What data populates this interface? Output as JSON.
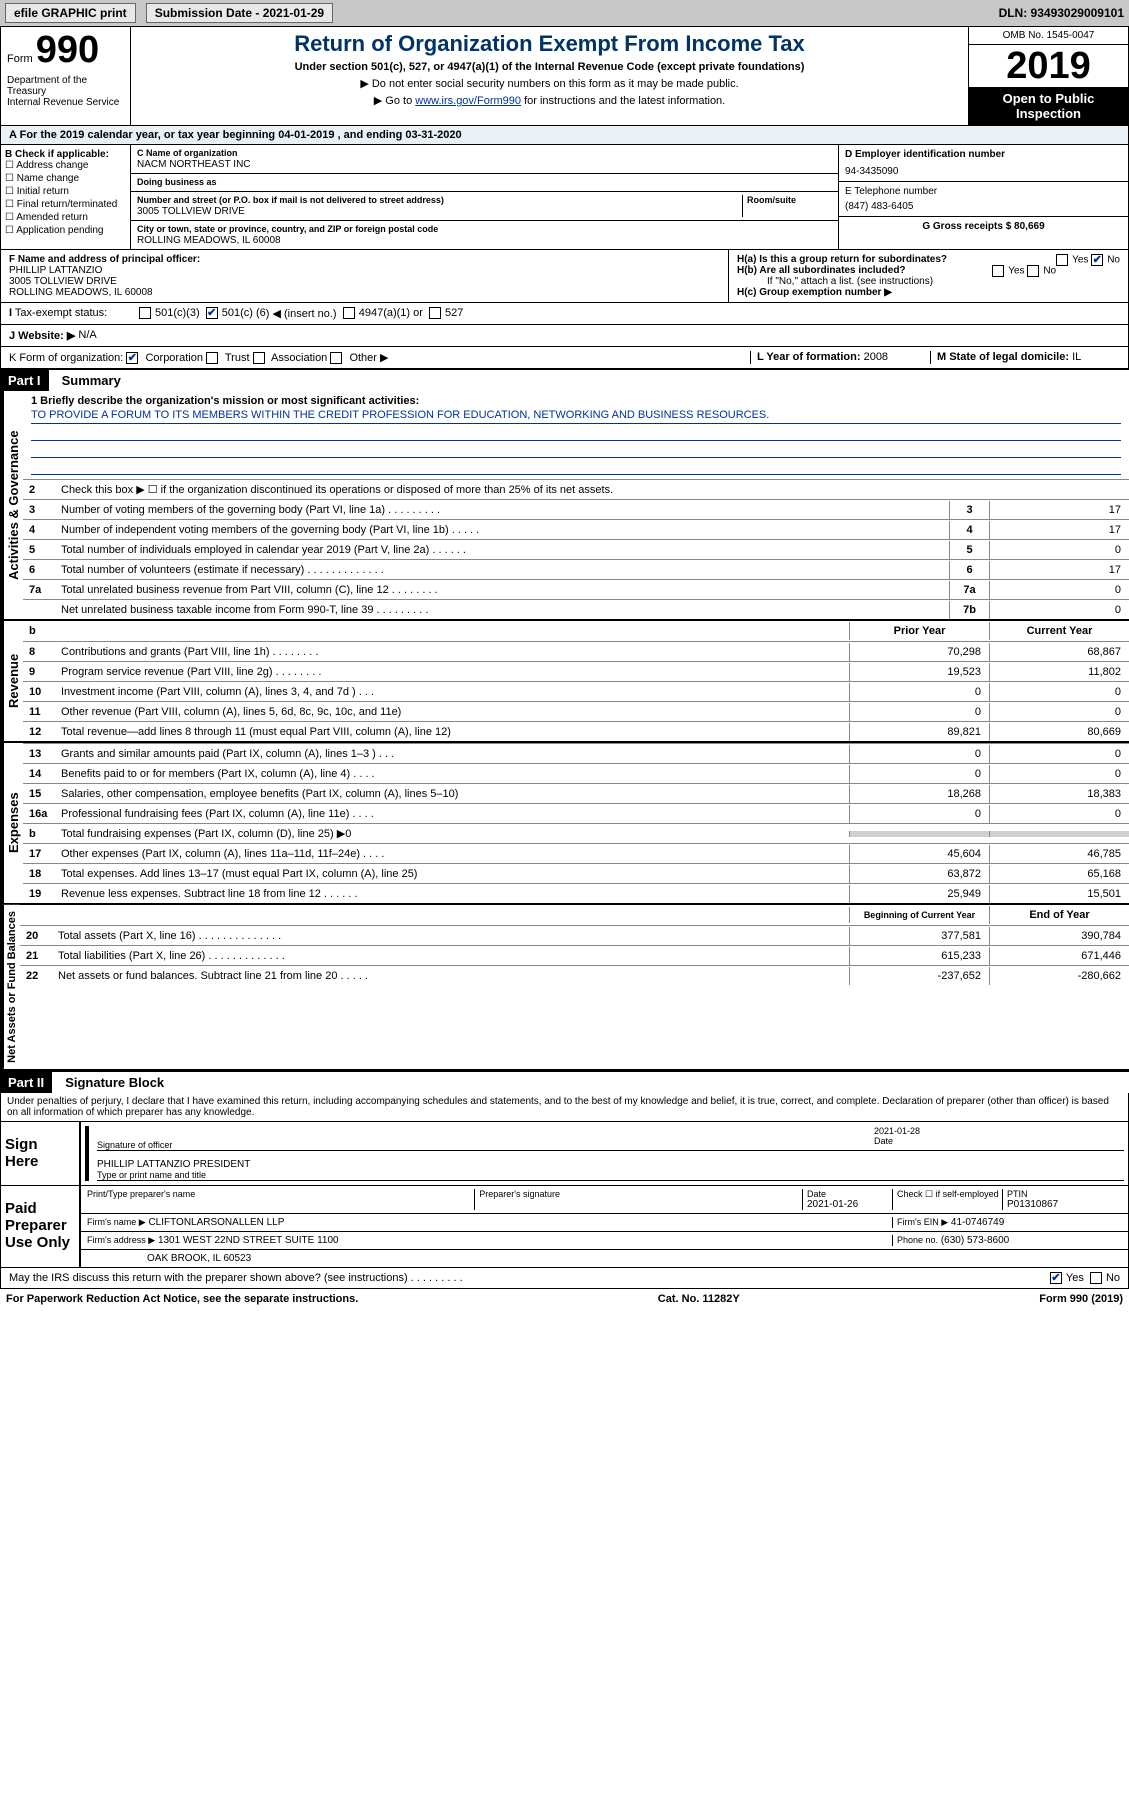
{
  "topbar": {
    "efile": "efile GRAPHIC print",
    "sub_label": "Submission Date - 2021-01-29",
    "dln": "DLN: 93493029009101"
  },
  "header": {
    "form_word": "Form",
    "form_num": "990",
    "dept": "Department of the Treasury\nInternal Revenue Service",
    "title": "Return of Organization Exempt From Income Tax",
    "subtitle": "Under section 501(c), 527, or 4947(a)(1) of the Internal Revenue Code (except private foundations)",
    "instr1": "▶ Do not enter social security numbers on this form as it may be made public.",
    "instr2_pre": "▶ Go to ",
    "instr2_link": "www.irs.gov/Form990",
    "instr2_post": " for instructions and the latest information.",
    "omb": "OMB No. 1545-0047",
    "year": "2019",
    "open_pub": "Open to Public Inspection"
  },
  "period": "For the 2019 calendar year, or tax year beginning 04-01-2019   , and ending 03-31-2020",
  "B": {
    "hdr": "B Check if applicable:",
    "items": [
      "Address change",
      "Name change",
      "Initial return",
      "Final return/terminated",
      "Amended return",
      "Application pending"
    ]
  },
  "C": {
    "name_label": "C Name of organization",
    "name": "NACM NORTHEAST INC",
    "dba_label": "Doing business as",
    "street_label": "Number and street (or P.O. box if mail is not delivered to street address)",
    "room_label": "Room/suite",
    "street": "3005 TOLLVIEW DRIVE",
    "city_label": "City or town, state or province, country, and ZIP or foreign postal code",
    "city": "ROLLING MEADOWS, IL  60008"
  },
  "D": {
    "label": "D Employer identification number",
    "val": "94-3435090"
  },
  "E": {
    "label": "E Telephone number",
    "val": "(847) 483-6405"
  },
  "G": {
    "label": "G Gross receipts $ 80,669"
  },
  "F": {
    "label": "F  Name and address of principal officer:",
    "name": "PHILLIP LATTANZIO",
    "street": "3005 TOLLVIEW DRIVE",
    "city": "ROLLING MEADOWS, IL  60008"
  },
  "H": {
    "a": "H(a)  Is this a group return for subordinates?",
    "b": "H(b)  Are all subordinates included?",
    "b2": "If \"No,\" attach a list. (see instructions)",
    "c": "H(c)  Group exemption number ▶"
  },
  "I": {
    "label": "Tax-exempt status:",
    "c3": "501(c)(3)",
    "c_other_pre": "501(c) (",
    "c_other_num": "6",
    "c_other_post": ") ◀ (insert no.)",
    "a1": "4947(a)(1) or",
    "s527": "527"
  },
  "J": {
    "label": "J   Website: ▶",
    "val": "N/A"
  },
  "K": {
    "label": "K Form of organization:",
    "corp": "Corporation",
    "trust": "Trust",
    "assoc": "Association",
    "other": "Other ▶"
  },
  "L": {
    "label": "L Year of formation:",
    "val": "2008"
  },
  "M": {
    "label": "M State of legal domicile:",
    "val": "IL"
  },
  "partI": {
    "hdr": "Part I",
    "title": "Summary"
  },
  "mission_label": "1   Briefly describe the organization's mission or most significant activities:",
  "mission": "TO PROVIDE A FORUM TO ITS MEMBERS WITHIN THE CREDIT PROFESSION FOR EDUCATION, NETWORKING AND BUSINESS RESOURCES.",
  "gov_lines": [
    {
      "n": "2",
      "d": "Check this box ▶ ☐  if the organization discontinued its operations or disposed of more than 25% of its net assets."
    },
    {
      "n": "3",
      "d": "Number of voting members of the governing body (Part VI, line 1a)   .    .    .    .    .    .    .    .    .",
      "bn": "3",
      "bv": "17"
    },
    {
      "n": "4",
      "d": "Number of independent voting members of the governing body (Part VI, line 1b)   .    .    .    .    .",
      "bn": "4",
      "bv": "17"
    },
    {
      "n": "5",
      "d": "Total number of individuals employed in calendar year 2019 (Part V, line 2a)   .    .    .    .    .    .",
      "bn": "5",
      "bv": "0"
    },
    {
      "n": "6",
      "d": "Total number of volunteers (estimate if necessary)   .    .    .    .    .    .    .    .    .    .    .    .    .",
      "bn": "6",
      "bv": "17"
    },
    {
      "n": "7a",
      "d": "Total unrelated business revenue from Part VIII, column (C), line 12   .    .    .    .    .    .    .    .",
      "bn": "7a",
      "bv": "0"
    },
    {
      "n": "",
      "d": "Net unrelated business taxable income from Form 990-T, line 39    .    .    .    .    .    .    .    .    .",
      "bn": "7b",
      "bv": "0"
    }
  ],
  "two_col_hdr": {
    "prior": "Prior Year",
    "curr": "Current Year"
  },
  "rev_lines": [
    {
      "n": "8",
      "d": "Contributions and grants (Part VIII, line 1h)   .    .    .    .    .    .    .    .",
      "p": "70,298",
      "c": "68,867"
    },
    {
      "n": "9",
      "d": "Program service revenue (Part VIII, line 2g)   .    .    .    .    .    .    .    .",
      "p": "19,523",
      "c": "11,802"
    },
    {
      "n": "10",
      "d": "Investment income (Part VIII, column (A), lines 3, 4, and 7d )   .    .    .",
      "p": "0",
      "c": "0"
    },
    {
      "n": "11",
      "d": "Other revenue (Part VIII, column (A), lines 5, 6d, 8c, 9c, 10c, and 11e)",
      "p": "0",
      "c": "0"
    },
    {
      "n": "12",
      "d": "Total revenue—add lines 8 through 11 (must equal Part VIII, column (A), line 12)",
      "p": "89,821",
      "c": "80,669"
    }
  ],
  "exp_lines": [
    {
      "n": "13",
      "d": "Grants and similar amounts paid (Part IX, column (A), lines 1–3 )   .    .    .",
      "p": "0",
      "c": "0"
    },
    {
      "n": "14",
      "d": "Benefits paid to or for members (Part IX, column (A), line 4)   .    .    .    .",
      "p": "0",
      "c": "0"
    },
    {
      "n": "15",
      "d": "Salaries, other compensation, employee benefits (Part IX, column (A), lines 5–10)",
      "p": "18,268",
      "c": "18,383"
    },
    {
      "n": "16a",
      "d": "Professional fundraising fees (Part IX, column (A), line 11e)   .    .    .    .",
      "p": "0",
      "c": "0"
    },
    {
      "n": "b",
      "d": "Total fundraising expenses (Part IX, column (D), line 25) ▶0",
      "p": "",
      "c": "",
      "shaded": true
    },
    {
      "n": "17",
      "d": "Other expenses (Part IX, column (A), lines 11a–11d, 11f–24e)   .    .    .    .",
      "p": "45,604",
      "c": "46,785"
    },
    {
      "n": "18",
      "d": "Total expenses. Add lines 13–17 (must equal Part IX, column (A), line 25)",
      "p": "63,872",
      "c": "65,168"
    },
    {
      "n": "19",
      "d": "Revenue less expenses. Subtract line 18 from line 12    .    .    .    .    .    .",
      "p": "25,949",
      "c": "15,501"
    }
  ],
  "net_hdr": {
    "prior": "Beginning of Current Year",
    "curr": "End of Year"
  },
  "net_lines": [
    {
      "n": "20",
      "d": "Total assets (Part X, line 16)   .    .    .    .    .    .    .    .    .    .    .    .    .    .",
      "p": "377,581",
      "c": "390,784"
    },
    {
      "n": "21",
      "d": "Total liabilities (Part X, line 26)   .    .    .    .    .    .    .    .    .    .    .    .    .",
      "p": "615,233",
      "c": "671,446"
    },
    {
      "n": "22",
      "d": "Net assets or fund balances. Subtract line 21 from line 20   .    .    .    .    .",
      "p": "-237,652",
      "c": "-280,662"
    }
  ],
  "side_labels": {
    "gov": "Activities & Governance",
    "rev": "Revenue",
    "exp": "Expenses",
    "net": "Net Assets or Fund Balances"
  },
  "partII": {
    "hdr": "Part II",
    "title": "Signature Block"
  },
  "penalty": "Under penalties of perjury, I declare that I have examined this return, including accompanying schedules and statements, and to the best of my knowledge and belief, it is true, correct, and complete. Declaration of preparer (other than officer) is based on all information of which preparer has any knowledge.",
  "sign": {
    "here": "Sign Here",
    "sig_of": "Signature of officer",
    "date": "Date",
    "date_v": "2021-01-28",
    "name": "PHILLIP LATTANZIO  PRESIDENT",
    "type_label": "Type or print name and title"
  },
  "paid": {
    "hdr": "Paid Preparer Use Only",
    "pt_name_label": "Print/Type preparer's name",
    "sig_label": "Preparer's signature",
    "date_label": "Date",
    "date_v": "2021-01-26",
    "check_label": "Check ☐ if self-employed",
    "ptin_label": "PTIN",
    "ptin_v": "P01310867",
    "firm_name_label": "Firm's name    ▶",
    "firm_name": "CLIFTONLARSONALLEN LLP",
    "ein_label": "Firm's EIN ▶",
    "ein": "41-0746749",
    "addr_label": "Firm's address ▶",
    "addr": "1301 WEST 22ND STREET SUITE 1100",
    "addr2": "OAK BROOK, IL  60523",
    "phone_label": "Phone no.",
    "phone": "(630) 573-8600"
  },
  "discuss": "May the IRS discuss this return with the preparer shown above? (see instructions)    .    .    .    .    .    .    .    .    .",
  "footer": {
    "left": "For Paperwork Reduction Act Notice, see the separate instructions.",
    "mid": "Cat. No. 11282Y",
    "right": "Form 990 (2019)"
  }
}
